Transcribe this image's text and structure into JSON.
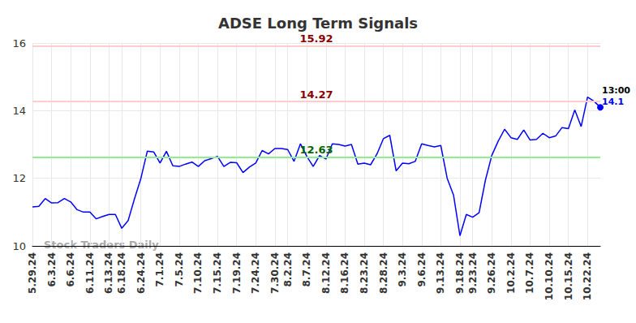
{
  "chart_data": {
    "type": "line",
    "title": "ADSE Long Term Signals",
    "categories": [
      "5.29.24",
      null,
      null,
      "6.3.24",
      null,
      null,
      "6.6.24",
      null,
      null,
      "6.11.24",
      null,
      null,
      "6.13.24",
      null,
      "6.18.24",
      null,
      null,
      "6.24.24",
      null,
      null,
      "7.1.24",
      null,
      null,
      "7.5.24",
      null,
      null,
      "7.10.24",
      null,
      null,
      "7.15.24",
      null,
      null,
      "7.19.24",
      null,
      null,
      "7.24.24",
      null,
      null,
      "7.30.24",
      null,
      "8.2.24",
      null,
      null,
      "8.7.24",
      null,
      null,
      "8.12.24",
      null,
      null,
      "8.16.24",
      null,
      null,
      "8.23.24",
      null,
      null,
      "8.28.24",
      null,
      null,
      "9.3.24",
      null,
      null,
      "9.6.24",
      null,
      null,
      "9.13.24",
      null,
      null,
      "9.18.24",
      null,
      "9.23.24",
      null,
      null,
      "9.26.24",
      null,
      null,
      "10.2.24",
      null,
      null,
      "10.7.24",
      null,
      null,
      "10.10.24",
      null,
      null,
      "10.15.24",
      null,
      null,
      "10.22.24",
      null,
      null
    ],
    "values": [
      11.15,
      11.17,
      11.4,
      11.27,
      11.28,
      11.4,
      11.3,
      11.07,
      11.0,
      11.0,
      10.8,
      10.87,
      10.93,
      10.93,
      10.52,
      10.75,
      11.4,
      12.0,
      12.8,
      12.78,
      12.45,
      12.8,
      12.37,
      12.35,
      12.42,
      12.48,
      12.35,
      12.52,
      12.58,
      12.65,
      12.35,
      12.47,
      12.46,
      12.17,
      12.33,
      12.45,
      12.82,
      12.72,
      12.88,
      12.88,
      12.85,
      12.5,
      13.02,
      12.65,
      12.35,
      12.67,
      12.57,
      13.02,
      13.0,
      12.95,
      13.0,
      12.42,
      12.45,
      12.4,
      12.72,
      13.17,
      13.27,
      12.22,
      12.45,
      12.43,
      12.5,
      13.02,
      12.97,
      12.93,
      12.97,
      12.0,
      11.5,
      10.3,
      10.93,
      10.85,
      10.98,
      11.95,
      12.68,
      13.1,
      13.45,
      13.2,
      13.15,
      13.43,
      13.13,
      13.15,
      13.33,
      13.2,
      13.25,
      13.5,
      13.47,
      14.02,
      13.53,
      14.4,
      14.28,
      14.1
    ],
    "color": "#0000ff",
    "ylim": [
      10,
      16
    ],
    "yticks": [
      10,
      12,
      14,
      16
    ],
    "grid": true,
    "reference_lines": [
      {
        "value": 15.92,
        "color": "#ffcccc",
        "label_color": "#8b0000"
      },
      {
        "value": 14.27,
        "color": "#ffcccc",
        "label_color": "#8b0000"
      },
      {
        "value": 12.63,
        "color": "#90ee90",
        "label_color": "#006400"
      }
    ],
    "last_point_time": "13:00",
    "watermark": "Stock Traders Daily"
  }
}
